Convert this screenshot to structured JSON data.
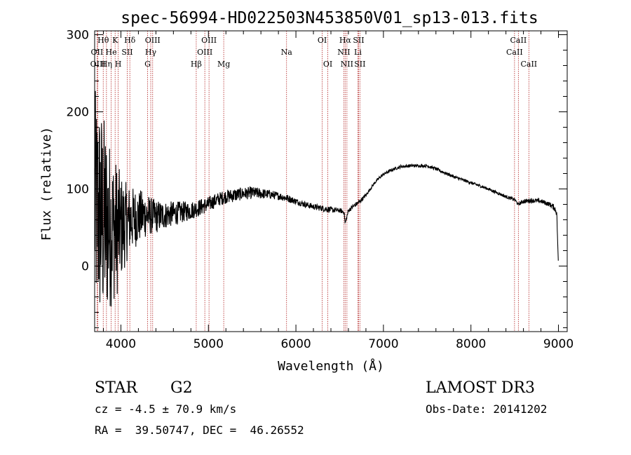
{
  "chart_data": {
    "type": "line",
    "title": "spec-56994-HD022503N453850V01_sp13-013.fits",
    "xlabel": "Wavelength (Å)",
    "ylabel": "Flux (relative)",
    "xlim": [
      3700,
      9100
    ],
    "ylim": [
      -85,
      305
    ],
    "x_ticks": [
      4000,
      5000,
      6000,
      7000,
      8000,
      9000
    ],
    "y_ticks": [
      0,
      100,
      200,
      300
    ],
    "x_tick_labels": [
      "4000",
      "5000",
      "6000",
      "7000",
      "8000",
      "9000"
    ],
    "y_tick_labels": [
      "0",
      "100",
      "200",
      "300"
    ],
    "line_color": "#000000",
    "marker_color": "#b22222",
    "spectrum": {
      "x": [
        3700,
        3750,
        3800,
        3850,
        3900,
        3950,
        4000,
        4050,
        4100,
        4150,
        4200,
        4250,
        4300,
        4350,
        4400,
        4450,
        4500,
        4600,
        4700,
        4800,
        4900,
        5000,
        5100,
        5200,
        5300,
        5400,
        5500,
        5600,
        5700,
        5800,
        5900,
        6000,
        6100,
        6200,
        6300,
        6400,
        6500,
        6550,
        6563,
        6600,
        6650,
        6700,
        6750,
        6800,
        6850,
        6900,
        6950,
        7000,
        7100,
        7200,
        7300,
        7400,
        7500,
        7600,
        7700,
        7800,
        7900,
        8000,
        8100,
        8200,
        8300,
        8400,
        8500,
        8540,
        8600,
        8700,
        8800,
        8900,
        8950,
        8980,
        9000
      ],
      "y": [
        80,
        70,
        60,
        55,
        50,
        48,
        50,
        55,
        60,
        62,
        64,
        66,
        66,
        65,
        64,
        65,
        66,
        68,
        70,
        72,
        76,
        80,
        86,
        90,
        92,
        94,
        95,
        94,
        93,
        91,
        88,
        84,
        80,
        77,
        75,
        73,
        72,
        70,
        55,
        72,
        77,
        81,
        86,
        92,
        100,
        108,
        114,
        119,
        125,
        129,
        130,
        130,
        130,
        126,
        121,
        116,
        112,
        108,
        104,
        100,
        95,
        90,
        86,
        80,
        84,
        85,
        84,
        80,
        76,
        70,
        0
      ],
      "noise": [
        150,
        150,
        140,
        120,
        100,
        90,
        70,
        55,
        45,
        40,
        36,
        32,
        28,
        24,
        22,
        20,
        18,
        16,
        14,
        12,
        11,
        10,
        9,
        9,
        9,
        8,
        8,
        7,
        6,
        5,
        5,
        4,
        4,
        4,
        4,
        4,
        3,
        3,
        3,
        3,
        3,
        3,
        3,
        2,
        2,
        2,
        2,
        2,
        2,
        2,
        2,
        2,
        2,
        2,
        2,
        2,
        2,
        2,
        2,
        2,
        2,
        2,
        2,
        2,
        3,
        3,
        3,
        3,
        4,
        5,
        5
      ]
    },
    "spectral_lines": [
      {
        "label": "Hθ",
        "wavelength": 3798,
        "row": 0
      },
      {
        "label": "OII",
        "wavelength": 3727,
        "row": 1
      },
      {
        "label": "OIII",
        "wavelength": 3737,
        "row": 2
      },
      {
        "label": "Hη",
        "wavelength": 3835,
        "row": 2
      },
      {
        "label": "He",
        "wavelength": 3889,
        "row": 1
      },
      {
        "label": "K",
        "wavelength": 3934,
        "row": 0
      },
      {
        "label": "H",
        "wavelength": 3969,
        "row": 2
      },
      {
        "label": "SII",
        "wavelength": 4072,
        "row": 1
      },
      {
        "label": "Hδ",
        "wavelength": 4102,
        "row": 0
      },
      {
        "label": "G",
        "wavelength": 4305,
        "row": 2
      },
      {
        "label": "Hγ",
        "wavelength": 4341,
        "row": 1
      },
      {
        "label": "OIII",
        "wavelength": 4363,
        "row": 0
      },
      {
        "label": "Hβ",
        "wavelength": 4861,
        "row": 2
      },
      {
        "label": "OIII",
        "wavelength": 4959,
        "row": 1
      },
      {
        "label": "OIII",
        "wavelength": 5007,
        "row": 0
      },
      {
        "label": "Mg",
        "wavelength": 5175,
        "row": 2
      },
      {
        "label": "Na",
        "wavelength": 5893,
        "row": 1
      },
      {
        "label": "OI",
        "wavelength": 6300,
        "row": 0
      },
      {
        "label": "OI",
        "wavelength": 6364,
        "row": 2
      },
      {
        "label": "NII",
        "wavelength": 6548,
        "row": 1
      },
      {
        "label": "Hα",
        "wavelength": 6563,
        "row": 0
      },
      {
        "label": "NII",
        "wavelength": 6583,
        "row": 2
      },
      {
        "label": "Li",
        "wavelength": 6708,
        "row": 1
      },
      {
        "label": "SII",
        "wavelength": 6716,
        "row": 0
      },
      {
        "label": "SII",
        "wavelength": 6731,
        "row": 2
      },
      {
        "label": "CaII",
        "wavelength": 8498,
        "row": 1
      },
      {
        "label": "CaII",
        "wavelength": 8542,
        "row": 0
      },
      {
        "label": "CaII",
        "wavelength": 8662,
        "row": 2
      }
    ]
  },
  "info": {
    "object_class": "STAR",
    "subclass": "G2",
    "survey": "LAMOST DR3",
    "redshift_text": "cz = -4.5 ± 70.9 km/s",
    "obs_date_text": "Obs-Date: 20141202",
    "coords_text": "RA =  39.50747, DEC =  46.26552"
  }
}
